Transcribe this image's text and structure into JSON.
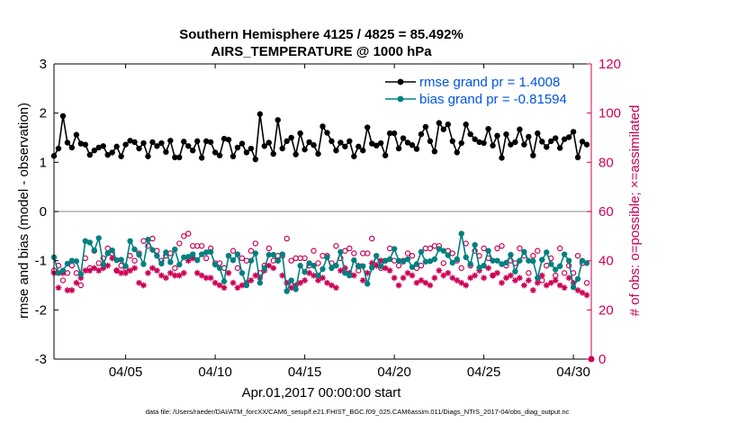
{
  "chart_data": {
    "type": "line",
    "title": "Southern Hemisphere 4125 / 4825 = 85.492%",
    "subtitle": "AIRS_TEMPERATURE @ 1000 hPa",
    "xlabel": "Apr.01,2017 00:00:00 start",
    "ylabel": "rmse and bias (model - observation)",
    "ylabel_right": "# of obs: o=possible; ×=assimilated",
    "xlim": [
      1,
      31
    ],
    "ylim": [
      -3,
      3
    ],
    "ylim_right": [
      0,
      120
    ],
    "x_ticks": [
      5,
      10,
      15,
      20,
      25,
      30
    ],
    "x_tick_labels": [
      "04/05",
      "04/10",
      "04/15",
      "04/20",
      "04/25",
      "04/30"
    ],
    "y_ticks": [
      -3,
      -2,
      -1,
      0,
      1,
      2,
      3
    ],
    "y_tick_labels": [
      "-3",
      "-2",
      "-1",
      "0",
      "1",
      "2",
      "3"
    ],
    "y_right_ticks": [
      0,
      20,
      40,
      60,
      80,
      100,
      120
    ],
    "y_right_tick_labels": [
      "0",
      "20",
      "40",
      "60",
      "80",
      "100",
      "120"
    ],
    "grid": false,
    "legend_position": "top-right",
    "footer": "data file: /Users/raeder/DAI/ATM_forcXX/CAM6_setup/f.e21.FHIST_BGC.f09_025.CAM6assim.011/Diags_NTrS_2017-04/obs_diag_output.nc",
    "colors": {
      "rmse": "#000000",
      "bias": "#008080",
      "obs": "#cc0055",
      "zero_line": "#a0a0a0"
    },
    "x": [
      1.0,
      1.25,
      1.5,
      1.75,
      2.0,
      2.25,
      2.5,
      2.75,
      3.0,
      3.25,
      3.5,
      3.75,
      4.0,
      4.25,
      4.5,
      4.75,
      5.0,
      5.25,
      5.5,
      5.75,
      6.0,
      6.25,
      6.5,
      6.75,
      7.0,
      7.25,
      7.5,
      7.75,
      8.0,
      8.25,
      8.5,
      8.75,
      9.0,
      9.25,
      9.5,
      9.75,
      10.0,
      10.25,
      10.5,
      10.75,
      11.0,
      11.25,
      11.5,
      11.75,
      12.0,
      12.25,
      12.5,
      12.75,
      13.0,
      13.25,
      13.5,
      13.75,
      14.0,
      14.25,
      14.5,
      14.75,
      15.0,
      15.25,
      15.5,
      15.75,
      16.0,
      16.25,
      16.5,
      16.75,
      17.0,
      17.25,
      17.5,
      17.75,
      18.0,
      18.25,
      18.5,
      18.75,
      19.0,
      19.25,
      19.5,
      19.75,
      20.0,
      20.25,
      20.5,
      20.75,
      21.0,
      21.25,
      21.5,
      21.75,
      22.0,
      22.25,
      22.5,
      22.75,
      23.0,
      23.25,
      23.5,
      23.75,
      24.0,
      24.25,
      24.5,
      24.75,
      25.0,
      25.25,
      25.5,
      25.75,
      26.0,
      26.25,
      26.5,
      26.75,
      27.0,
      27.25,
      27.5,
      27.75,
      28.0,
      28.25,
      28.5,
      28.75,
      29.0,
      29.25,
      29.5,
      29.75,
      30.0,
      30.25,
      30.5,
      30.75
    ],
    "series": [
      {
        "name": "rmse grand pr = 1.4008",
        "values": [
          1.13,
          1.28,
          1.94,
          1.4,
          1.3,
          1.56,
          1.38,
          1.36,
          1.15,
          1.24,
          1.3,
          1.33,
          1.15,
          1.2,
          1.32,
          1.12,
          1.36,
          1.44,
          1.41,
          1.28,
          1.39,
          1.12,
          1.41,
          1.33,
          1.39,
          1.21,
          1.44,
          1.1,
          1.1,
          1.42,
          1.33,
          1.24,
          1.43,
          1.09,
          1.43,
          1.41,
          1.2,
          1.14,
          1.48,
          1.46,
          1.12,
          1.3,
          1.38,
          1.2,
          1.28,
          1.06,
          1.98,
          1.33,
          1.4,
          1.17,
          1.86,
          1.28,
          1.43,
          1.5,
          1.16,
          1.59,
          1.26,
          1.41,
          1.35,
          1.17,
          1.73,
          1.6,
          1.43,
          1.24,
          1.4,
          1.32,
          1.43,
          1.12,
          1.32,
          1.24,
          1.71,
          1.38,
          1.34,
          1.39,
          1.14,
          1.59,
          1.59,
          1.28,
          1.49,
          1.4,
          1.35,
          1.27,
          1.57,
          1.72,
          1.43,
          1.22,
          1.8,
          1.67,
          1.77,
          1.43,
          1.2,
          1.39,
          1.77,
          1.57,
          1.47,
          1.41,
          1.39,
          1.68,
          1.34,
          1.54,
          1.09,
          1.57,
          1.36,
          1.41,
          1.67,
          1.36,
          1.52,
          1.14,
          1.59,
          1.42,
          1.31,
          1.43,
          1.49,
          1.29,
          1.47,
          1.51,
          1.62,
          1.1,
          1.42,
          1.36
        ]
      },
      {
        "name": "bias grand pr = -0.81594",
        "values": [
          -0.93,
          -1.25,
          -1.2,
          -1.06,
          -1.0,
          -1.01,
          -1.28,
          -0.6,
          -0.63,
          -0.79,
          -0.54,
          -1.08,
          -0.85,
          -0.79,
          -0.99,
          -0.98,
          -1.11,
          -0.6,
          -0.77,
          -0.88,
          -1.07,
          -0.57,
          -0.78,
          -0.9,
          -1.06,
          -0.83,
          -1.03,
          -0.77,
          -1.08,
          -0.93,
          -0.92,
          -0.87,
          -0.99,
          -0.87,
          -0.83,
          -0.82,
          -1.08,
          -1.15,
          -1.42,
          -0.9,
          -0.99,
          -0.87,
          -1.25,
          -1.5,
          -1.0,
          -0.85,
          -1.45,
          -1.15,
          -0.88,
          -0.88,
          -1.0,
          -0.87,
          -1.62,
          -1.4,
          -1.58,
          -1.1,
          -1.23,
          -1.05,
          -1.1,
          -1.3,
          -1.17,
          -0.93,
          -1.15,
          -1.1,
          -0.82,
          -1.25,
          -1.3,
          -0.99,
          -1.12,
          -1.11,
          -1.47,
          -1.14,
          -0.9,
          -1.11,
          -1.0,
          -0.97,
          -0.76,
          -1.0,
          -1.02,
          -0.97,
          -1.13,
          -1.07,
          -0.82,
          -1.02,
          -1.01,
          -0.97,
          -0.76,
          -0.8,
          -0.89,
          -1.04,
          -0.97,
          -0.45,
          -0.93,
          -1.07,
          -0.68,
          -1.14,
          -1.1,
          -0.8,
          -1.0,
          -1.0,
          -1.07,
          -1.04,
          -0.88,
          -1.22,
          -1.0,
          -0.82,
          -1.0,
          -1.01,
          -1.35,
          -0.98,
          -0.83,
          -1.07,
          -1.18,
          -1.11,
          -0.87,
          -1.0,
          -1.54,
          -1.37,
          -1.0,
          -1.05
        ]
      },
      {
        "name": "obs possible",
        "axis": "right",
        "values": [
          36,
          38,
          32,
          35,
          38,
          35,
          30,
          41,
          37,
          44,
          39,
          41,
          45,
          43,
          36,
          38,
          37,
          42,
          40,
          43,
          48,
          46,
          49,
          44,
          40,
          42,
          43,
          37,
          47,
          50,
          51,
          46,
          46,
          46,
          41,
          45,
          39,
          39,
          37,
          42,
          44,
          37,
          41,
          40,
          44,
          47,
          35,
          38,
          45,
          40,
          42,
          42,
          49,
          40,
          41,
          41,
          41,
          38,
          44,
          39,
          42,
          42,
          39,
          46,
          41,
          44,
          45,
          43,
          36,
          43,
          43,
          49,
          40,
          37,
          40,
          45,
          40,
          38,
          40,
          43,
          42,
          37,
          38,
          45,
          45,
          46,
          46,
          39,
          44,
          43,
          40,
          37,
          47,
          38,
          44,
          42,
          45,
          41,
          34,
          45,
          46,
          38,
          40,
          39,
          45,
          42,
          35,
          42,
          44,
          32,
          38,
          41,
          34,
          45,
          35,
          38,
          35,
          42,
          39,
          31
        ]
      },
      {
        "name": "obs assimilated",
        "axis": "right",
        "values": [
          35,
          29,
          35,
          28,
          28,
          31,
          33,
          36,
          36,
          37,
          36,
          37,
          38,
          41,
          36,
          35,
          35,
          36,
          37,
          31,
          30,
          35,
          37,
          36,
          34,
          33,
          35,
          34,
          34,
          35,
          40,
          41,
          35,
          34,
          33,
          33,
          31,
          30,
          29,
          35,
          31,
          29,
          30,
          31,
          32,
          34,
          33,
          36,
          38,
          37,
          40,
          34,
          31,
          29,
          30,
          31,
          32,
          35,
          34,
          32,
          33,
          31,
          30,
          29,
          36,
          37,
          35,
          34,
          38,
          32,
          35,
          39,
          38,
          40,
          37,
          36,
          33,
          30,
          33,
          35,
          34,
          31,
          32,
          31,
          30,
          33,
          36,
          34,
          35,
          33,
          32,
          31,
          30,
          33,
          34,
          36,
          33,
          37,
          34,
          35,
          31,
          33,
          34,
          32,
          33,
          30,
          32,
          28,
          31,
          34,
          30,
          31,
          32,
          30,
          29,
          33,
          31,
          28,
          27,
          26
        ]
      }
    ]
  }
}
